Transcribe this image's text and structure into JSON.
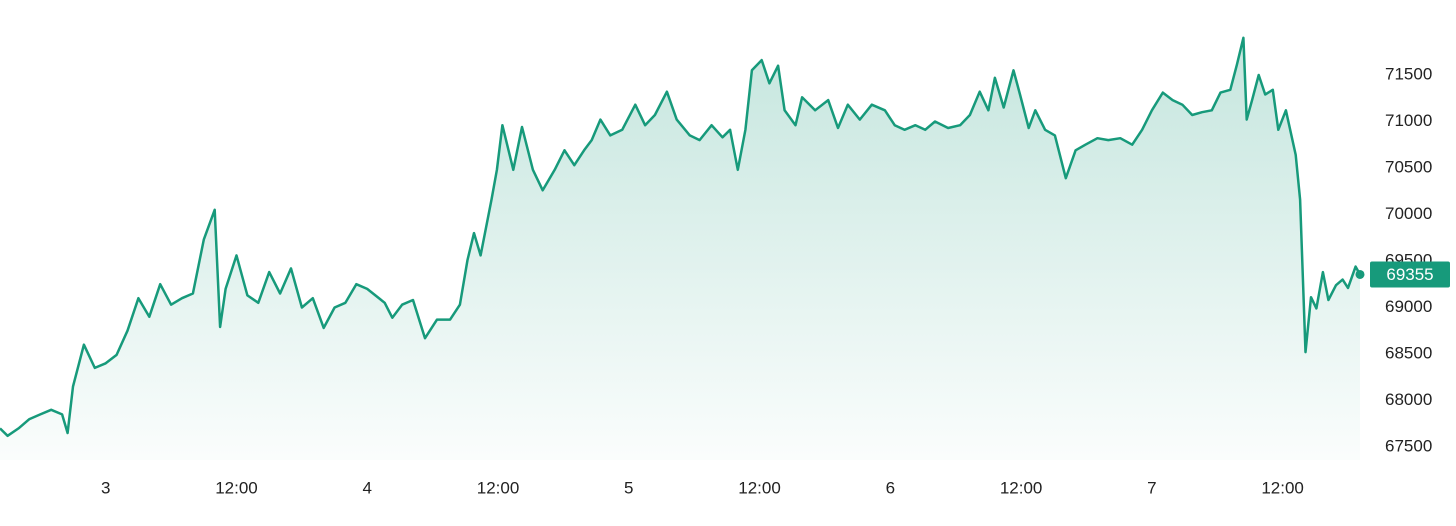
{
  "chart_data": {
    "type": "area",
    "x": [
      -9.7,
      -9,
      -8,
      -7,
      -6,
      -5,
      -4,
      -3.5,
      -3,
      -2,
      -1,
      0,
      1,
      2,
      3,
      4,
      5,
      6,
      7,
      8,
      9,
      10,
      10.5,
      11,
      12,
      13,
      14,
      15,
      16,
      17,
      18,
      19,
      20,
      21,
      22,
      23,
      24,
      25.6,
      26.3,
      27.2,
      28.2,
      29.3,
      30.4,
      31.6,
      32.5,
      33.2,
      33.8,
      34.4,
      35.4,
      35.9,
      36.4,
      37.4,
      38.2,
      39.2,
      40.1,
      41.2,
      42.1,
      43,
      43.9,
      44.6,
      45.4,
      46.3,
      47.4,
      48.6,
      49.5,
      50.4,
      51.5,
      52.4,
      53.6,
      54.5,
      55.6,
      56.6,
      57.3,
      58,
      58.7,
      59.3,
      60.2,
      60.9,
      61.7,
      62.3,
      63.3,
      63.9,
      65.1,
      66.3,
      67.2,
      68.1,
      69.2,
      70.3,
      71.5,
      72.4,
      73.3,
      74.3,
      75.2,
      76.1,
      77.3,
      78.4,
      79.3,
      80.2,
      81,
      81.6,
      82.4,
      83.3,
      83.9,
      84.7,
      85.3,
      86.2,
      87.1,
      88.1,
      89,
      89.9,
      91,
      92,
      93.1,
      94.2,
      95.1,
      96,
      97,
      97.9,
      98.8,
      99.7,
      100.6,
      101.5,
      102.3,
      103.2,
      103.8,
      104.4,
      104.7,
      105.2,
      105.8,
      106.4,
      107.1,
      107.6,
      108.3,
      109.2,
      109.6,
      110.1,
      110.6,
      111.1,
      111.7,
      112.2,
      112.9,
      113.5,
      114,
      114.7,
      115.1
    ],
    "values": [
      67700,
      67620,
      67700,
      67800,
      67850,
      67900,
      67850,
      67650,
      68150,
      68600,
      68350,
      68400,
      68490,
      68750,
      69100,
      68900,
      69250,
      69030,
      69100,
      69150,
      69730,
      70050,
      68790,
      69200,
      69560,
      69130,
      69050,
      69380,
      69150,
      69420,
      69000,
      69100,
      68780,
      69000,
      69050,
      69250,
      69200,
      69050,
      68890,
      69030,
      69080,
      68670,
      68870,
      68870,
      69030,
      69510,
      69800,
      69560,
      70160,
      70480,
      70960,
      70480,
      70940,
      70480,
      70260,
      70480,
      70690,
      70530,
      70690,
      70800,
      71020,
      70850,
      70910,
      71180,
      70960,
      71070,
      71320,
      71020,
      70850,
      70800,
      70960,
      70830,
      70910,
      70480,
      70910,
      71550,
      71660,
      71410,
      71600,
      71120,
      70960,
      71260,
      71120,
      71230,
      70930,
      71180,
      71020,
      71180,
      71120,
      70960,
      70910,
      70960,
      70910,
      71000,
      70930,
      70960,
      71070,
      71320,
      71120,
      71470,
      71150,
      71550,
      71290,
      70930,
      71120,
      70910,
      70850,
      70390,
      70690,
      70750,
      70820,
      70800,
      70820,
      70750,
      70910,
      71120,
      71310,
      71230,
      71180,
      71070,
      71100,
      71120,
      71310,
      71340,
      71610,
      71900,
      71020,
      71230,
      71500,
      71290,
      71340,
      70910,
      71120,
      70640,
      70160,
      68520,
      69110,
      68990,
      69380,
      69080,
      69240,
      69300,
      69210,
      69440,
      69355
    ],
    "color": "#179a7b",
    "last_value": 69355,
    "xlim": [
      -9.7,
      115.1
    ],
    "xticks": [
      {
        "value": 0,
        "label": "3"
      },
      {
        "value": 12,
        "label": "12:00"
      },
      {
        "value": 24,
        "label": "4"
      },
      {
        "value": 36,
        "label": "12:00"
      },
      {
        "value": 48,
        "label": "5"
      },
      {
        "value": 60,
        "label": "12:00"
      },
      {
        "value": 72,
        "label": "6"
      },
      {
        "value": 84,
        "label": "12:00"
      },
      {
        "value": 96,
        "label": "7"
      },
      {
        "value": 108,
        "label": "12:00"
      }
    ],
    "ylim": [
      67360,
      72306
    ],
    "yticks": [
      67500,
      68000,
      68500,
      69000,
      69500,
      70000,
      70500,
      71000,
      71500
    ]
  }
}
